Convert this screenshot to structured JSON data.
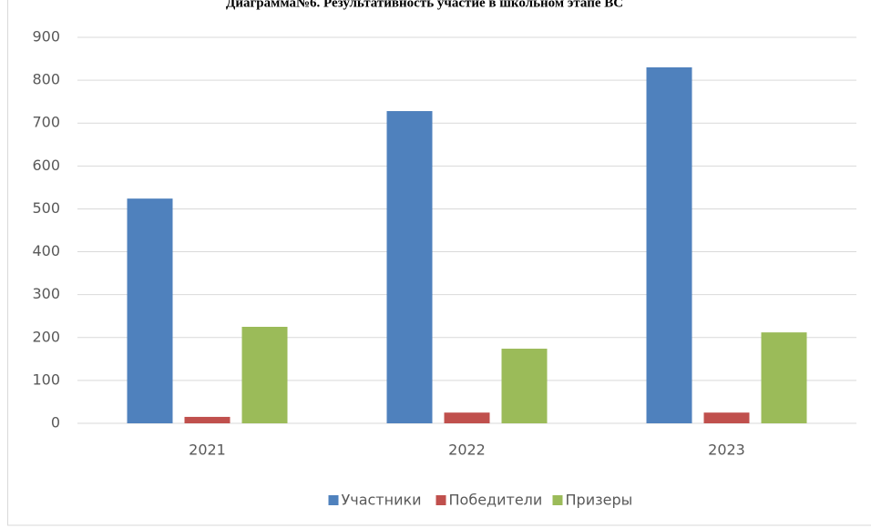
{
  "chart_data": {
    "type": "bar",
    "title": "Диаграмма№6. Результативность участие в школьном этапе ВС",
    "categories": [
      "2021",
      "2022",
      "2023"
    ],
    "series": [
      {
        "name": "Участники",
        "color": "#4f81bd",
        "values": [
          524,
          728,
          830
        ]
      },
      {
        "name": "Победители",
        "color": "#c0504d",
        "values": [
          15,
          25,
          25
        ]
      },
      {
        "name": "Призеры",
        "color": "#9bbb59",
        "values": [
          225,
          174,
          212
        ]
      }
    ],
    "ylim": [
      0,
      900
    ],
    "yticks": [
      0,
      100,
      200,
      300,
      400,
      500,
      600,
      700,
      800,
      900
    ],
    "grid": true,
    "legend": "bottom"
  }
}
